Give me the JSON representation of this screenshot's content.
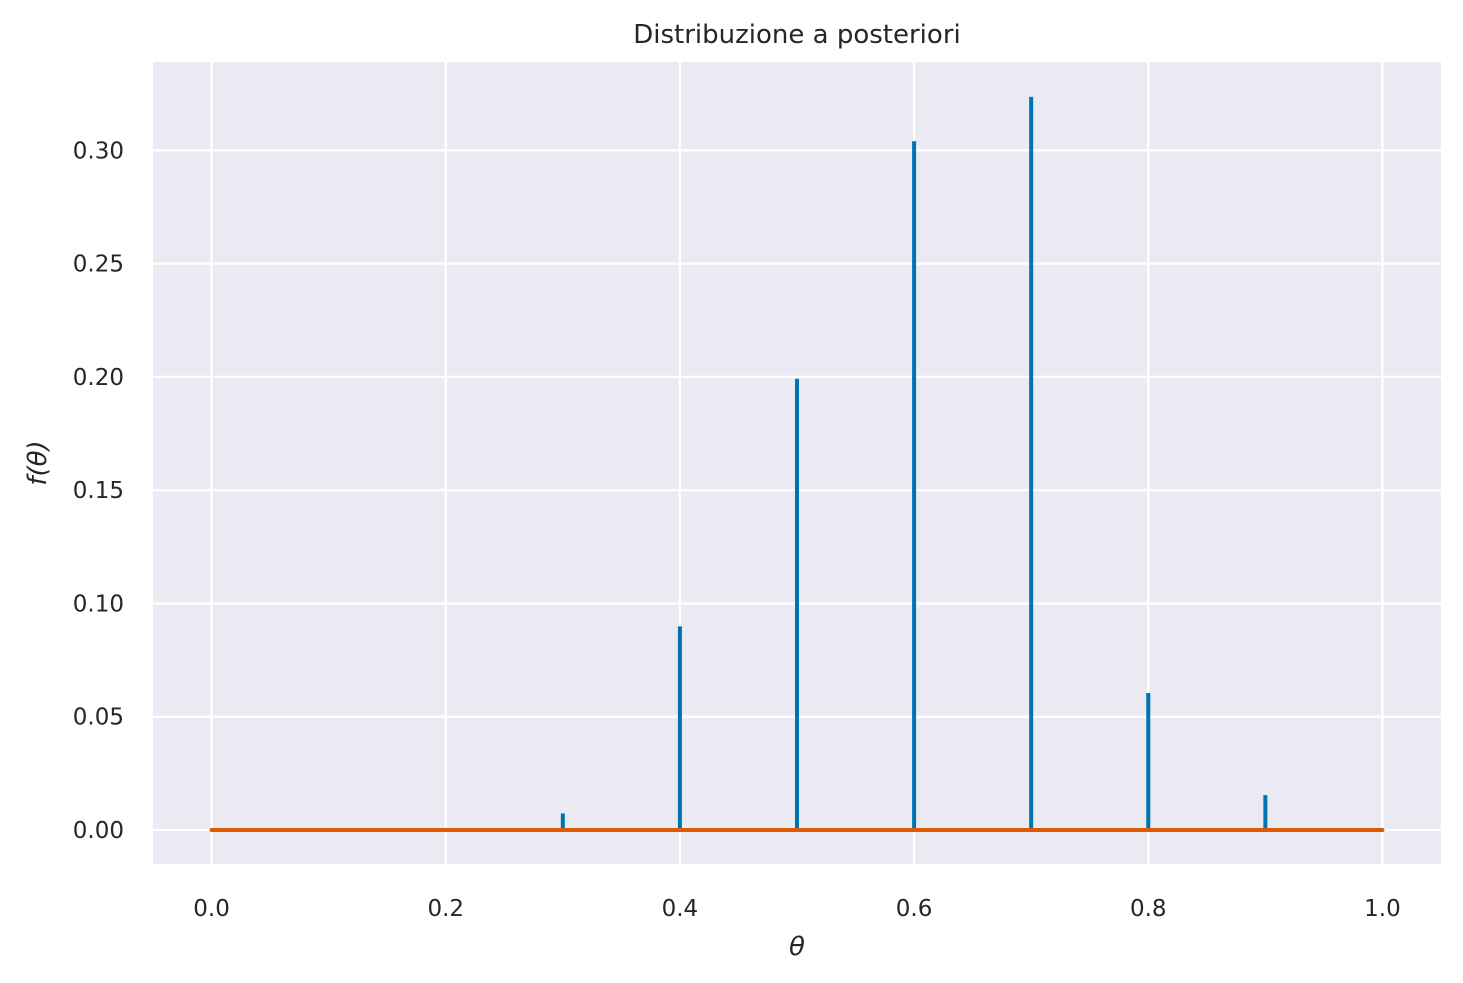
{
  "chart_data": {
    "type": "bar",
    "title": "Distribuzione a posteriori",
    "xlabel": "θ",
    "ylabel": "f(θ)",
    "xlim": [
      -0.05,
      1.05
    ],
    "ylim": [
      -0.015,
      0.339
    ],
    "xticks": [
      0.0,
      0.2,
      0.4,
      0.6,
      0.8,
      1.0
    ],
    "xtick_labels": [
      "0.0",
      "0.2",
      "0.4",
      "0.6",
      "0.8",
      "1.0"
    ],
    "yticks": [
      0.0,
      0.05,
      0.1,
      0.15,
      0.2,
      0.25,
      0.3
    ],
    "ytick_labels": [
      "0.00",
      "0.05",
      "0.10",
      "0.15",
      "0.20",
      "0.25",
      "0.30"
    ],
    "grid": true,
    "series": [
      {
        "type": "stem",
        "color": "#0173b2",
        "x": [
          0.0,
          0.1,
          0.2,
          0.3,
          0.4,
          0.5,
          0.6,
          0.7,
          0.8,
          0.9,
          1.0
        ],
        "values": [
          0.0,
          0.0,
          0.0,
          0.0073,
          0.0899,
          0.1992,
          0.304,
          0.3236,
          0.0605,
          0.0154,
          0.0
        ]
      },
      {
        "type": "line",
        "color": "#de5a00",
        "x": [
          0.0,
          1.0
        ],
        "values": [
          0.0,
          0.0
        ]
      }
    ],
    "background_color": "#eaeaf2",
    "grid_color": "#ffffff"
  }
}
